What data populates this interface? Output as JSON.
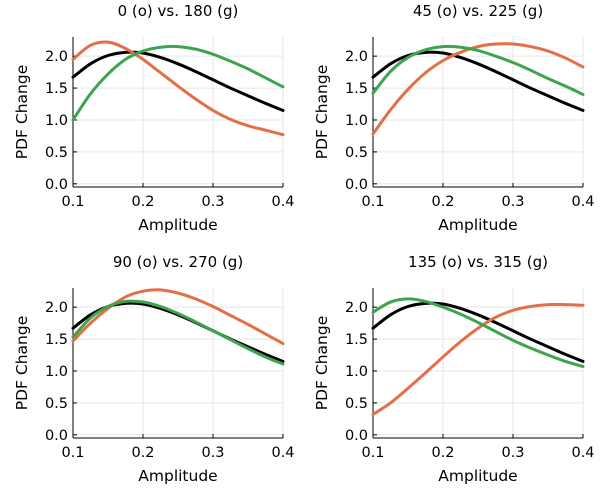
{
  "chart_data": [
    {
      "type": "line",
      "title": "0 (o) vs. 180 (g)",
      "xlabel": "Amplitude",
      "ylabel": "PDF Change",
      "xlim": [
        0.1,
        0.4
      ],
      "ylim": [
        -0.05,
        2.3
      ],
      "xticks": [
        "0.1",
        "0.2",
        "0.3",
        "0.4"
      ],
      "yticks": [
        "0.0",
        "0.5",
        "1.0",
        "1.5",
        "2.0"
      ],
      "grid": true,
      "series": [
        {
          "color": "#000000",
          "x": [
            0.1,
            0.125,
            0.15,
            0.175,
            0.2,
            0.225,
            0.25,
            0.275,
            0.3,
            0.325,
            0.35,
            0.375,
            0.4
          ],
          "y": [
            1.67,
            1.88,
            2.01,
            2.06,
            2.05,
            1.98,
            1.88,
            1.76,
            1.63,
            1.5,
            1.38,
            1.26,
            1.15
          ]
        },
        {
          "color": "#e26f46",
          "x": [
            0.1,
            0.125,
            0.15,
            0.175,
            0.2,
            0.225,
            0.25,
            0.275,
            0.3,
            0.325,
            0.35,
            0.375,
            0.4
          ],
          "y": [
            1.95,
            2.17,
            2.22,
            2.12,
            1.95,
            1.74,
            1.53,
            1.33,
            1.15,
            1.01,
            0.91,
            0.84,
            0.77
          ]
        },
        {
          "color": "#3da44d",
          "x": [
            0.1,
            0.125,
            0.15,
            0.175,
            0.2,
            0.225,
            0.25,
            0.275,
            0.3,
            0.325,
            0.35,
            0.375,
            0.4
          ],
          "y": [
            1.0,
            1.41,
            1.72,
            1.95,
            2.08,
            2.14,
            2.15,
            2.11,
            2.03,
            1.92,
            1.8,
            1.66,
            1.52
          ]
        }
      ]
    },
    {
      "type": "line",
      "title": "45 (o) vs. 225 (g)",
      "xlabel": "Amplitude",
      "ylabel": "PDF Change",
      "xlim": [
        0.1,
        0.4
      ],
      "ylim": [
        -0.05,
        2.3
      ],
      "xticks": [
        "0.1",
        "0.2",
        "0.3",
        "0.4"
      ],
      "yticks": [
        "0.0",
        "0.5",
        "1.0",
        "1.5",
        "2.0"
      ],
      "grid": true,
      "series": [
        {
          "color": "#000000",
          "x": [
            0.1,
            0.125,
            0.15,
            0.175,
            0.2,
            0.225,
            0.25,
            0.275,
            0.3,
            0.325,
            0.35,
            0.375,
            0.4
          ],
          "y": [
            1.67,
            1.88,
            2.01,
            2.06,
            2.05,
            1.98,
            1.88,
            1.76,
            1.63,
            1.5,
            1.38,
            1.26,
            1.15
          ]
        },
        {
          "color": "#e26f46",
          "x": [
            0.1,
            0.125,
            0.15,
            0.175,
            0.2,
            0.225,
            0.25,
            0.275,
            0.3,
            0.325,
            0.35,
            0.375,
            0.4
          ],
          "y": [
            0.78,
            1.16,
            1.48,
            1.74,
            1.93,
            2.06,
            2.15,
            2.19,
            2.19,
            2.15,
            2.08,
            1.97,
            1.83
          ]
        },
        {
          "color": "#3da44d",
          "x": [
            0.1,
            0.125,
            0.15,
            0.175,
            0.2,
            0.225,
            0.25,
            0.275,
            0.3,
            0.325,
            0.35,
            0.375,
            0.4
          ],
          "y": [
            1.42,
            1.76,
            1.98,
            2.1,
            2.15,
            2.14,
            2.09,
            2.0,
            1.9,
            1.78,
            1.65,
            1.53,
            1.4
          ]
        }
      ]
    },
    {
      "type": "line",
      "title": "90 (o) vs. 270 (g)",
      "xlabel": "Amplitude",
      "ylabel": "PDF Change",
      "xlim": [
        0.1,
        0.4
      ],
      "ylim": [
        -0.05,
        2.3
      ],
      "xticks": [
        "0.1",
        "0.2",
        "0.3",
        "0.4"
      ],
      "yticks": [
        "0.0",
        "0.5",
        "1.0",
        "1.5",
        "2.0"
      ],
      "grid": true,
      "series": [
        {
          "color": "#000000",
          "x": [
            0.1,
            0.125,
            0.15,
            0.175,
            0.2,
            0.225,
            0.25,
            0.275,
            0.3,
            0.325,
            0.35,
            0.375,
            0.4
          ],
          "y": [
            1.67,
            1.88,
            2.01,
            2.06,
            2.05,
            1.98,
            1.88,
            1.76,
            1.63,
            1.5,
            1.38,
            1.26,
            1.15
          ]
        },
        {
          "color": "#e26f46",
          "x": [
            0.1,
            0.125,
            0.15,
            0.175,
            0.2,
            0.225,
            0.25,
            0.275,
            0.3,
            0.325,
            0.35,
            0.375,
            0.4
          ],
          "y": [
            1.47,
            1.75,
            1.98,
            2.16,
            2.25,
            2.27,
            2.22,
            2.13,
            2.01,
            1.87,
            1.73,
            1.58,
            1.43
          ]
        },
        {
          "color": "#3da44d",
          "x": [
            0.1,
            0.125,
            0.15,
            0.175,
            0.2,
            0.225,
            0.25,
            0.275,
            0.3,
            0.325,
            0.35,
            0.375,
            0.4
          ],
          "y": [
            1.53,
            1.83,
            2.01,
            2.09,
            2.08,
            2.01,
            1.9,
            1.77,
            1.63,
            1.49,
            1.35,
            1.22,
            1.11
          ]
        }
      ]
    },
    {
      "type": "line",
      "title": "135 (o) vs. 315 (g)",
      "xlabel": "Amplitude",
      "ylabel": "PDF Change",
      "xlim": [
        0.1,
        0.4
      ],
      "ylim": [
        -0.05,
        2.3
      ],
      "xticks": [
        "0.1",
        "0.2",
        "0.3",
        "0.4"
      ],
      "yticks": [
        "0.0",
        "0.5",
        "1.0",
        "1.5",
        "2.0"
      ],
      "grid": true,
      "series": [
        {
          "color": "#000000",
          "x": [
            0.1,
            0.125,
            0.15,
            0.175,
            0.2,
            0.225,
            0.25,
            0.275,
            0.3,
            0.325,
            0.35,
            0.375,
            0.4
          ],
          "y": [
            1.67,
            1.88,
            2.01,
            2.06,
            2.05,
            1.98,
            1.88,
            1.76,
            1.63,
            1.5,
            1.38,
            1.26,
            1.15
          ]
        },
        {
          "color": "#e26f46",
          "x": [
            0.1,
            0.125,
            0.15,
            0.175,
            0.2,
            0.225,
            0.25,
            0.275,
            0.3,
            0.325,
            0.35,
            0.375,
            0.4
          ],
          "y": [
            0.32,
            0.5,
            0.73,
            0.97,
            1.22,
            1.46,
            1.67,
            1.84,
            1.95,
            2.01,
            2.04,
            2.04,
            2.03
          ]
        },
        {
          "color": "#3da44d",
          "x": [
            0.1,
            0.125,
            0.15,
            0.175,
            0.2,
            0.225,
            0.25,
            0.275,
            0.3,
            0.325,
            0.35,
            0.375,
            0.4
          ],
          "y": [
            1.92,
            2.08,
            2.13,
            2.09,
            2.0,
            1.89,
            1.76,
            1.62,
            1.48,
            1.36,
            1.25,
            1.15,
            1.07
          ]
        }
      ]
    }
  ]
}
